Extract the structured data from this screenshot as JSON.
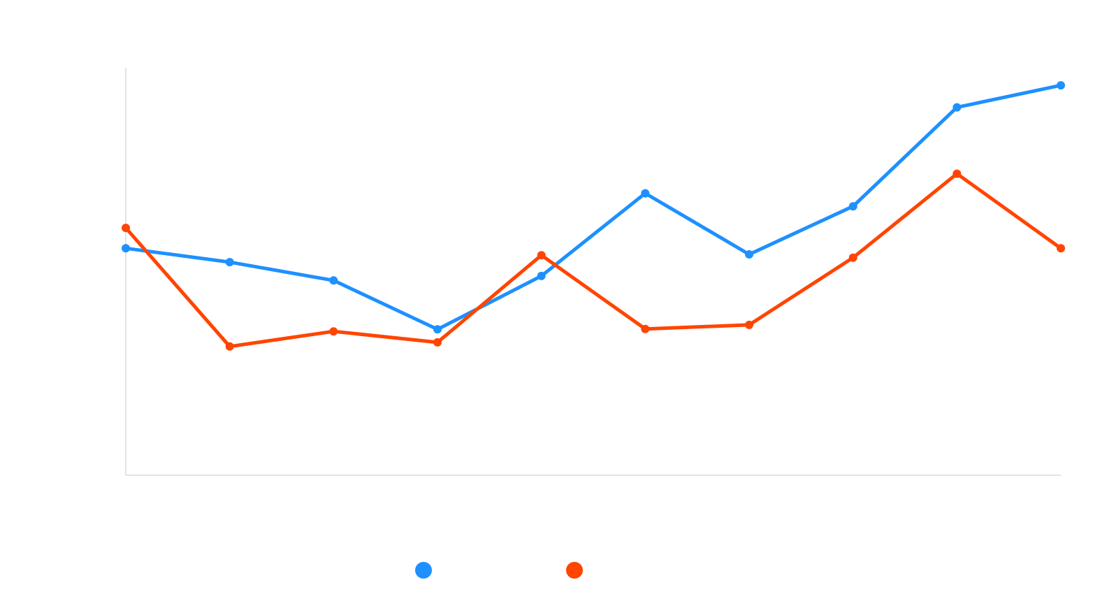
{
  "chart_data": {
    "type": "line",
    "title": "",
    "xlabel": "",
    "ylabel": "",
    "categories": [
      "",
      "",
      "",
      "",
      "",
      "",
      "",
      "",
      "",
      ""
    ],
    "ylim": [
      0,
      100
    ],
    "grid": false,
    "legend": "bottom-center",
    "series": [
      {
        "name": "",
        "color": "#1e90ff",
        "values": [
          55.7,
          52.3,
          47.8,
          35.8,
          48.9,
          69.2,
          54.2,
          66.0,
          90.3,
          95.7
        ]
      },
      {
        "name": "",
        "color": "#ff4500",
        "values": [
          60.7,
          31.6,
          35.3,
          32.6,
          54.0,
          35.9,
          36.9,
          53.4,
          74.0,
          55.7
        ]
      }
    ]
  }
}
